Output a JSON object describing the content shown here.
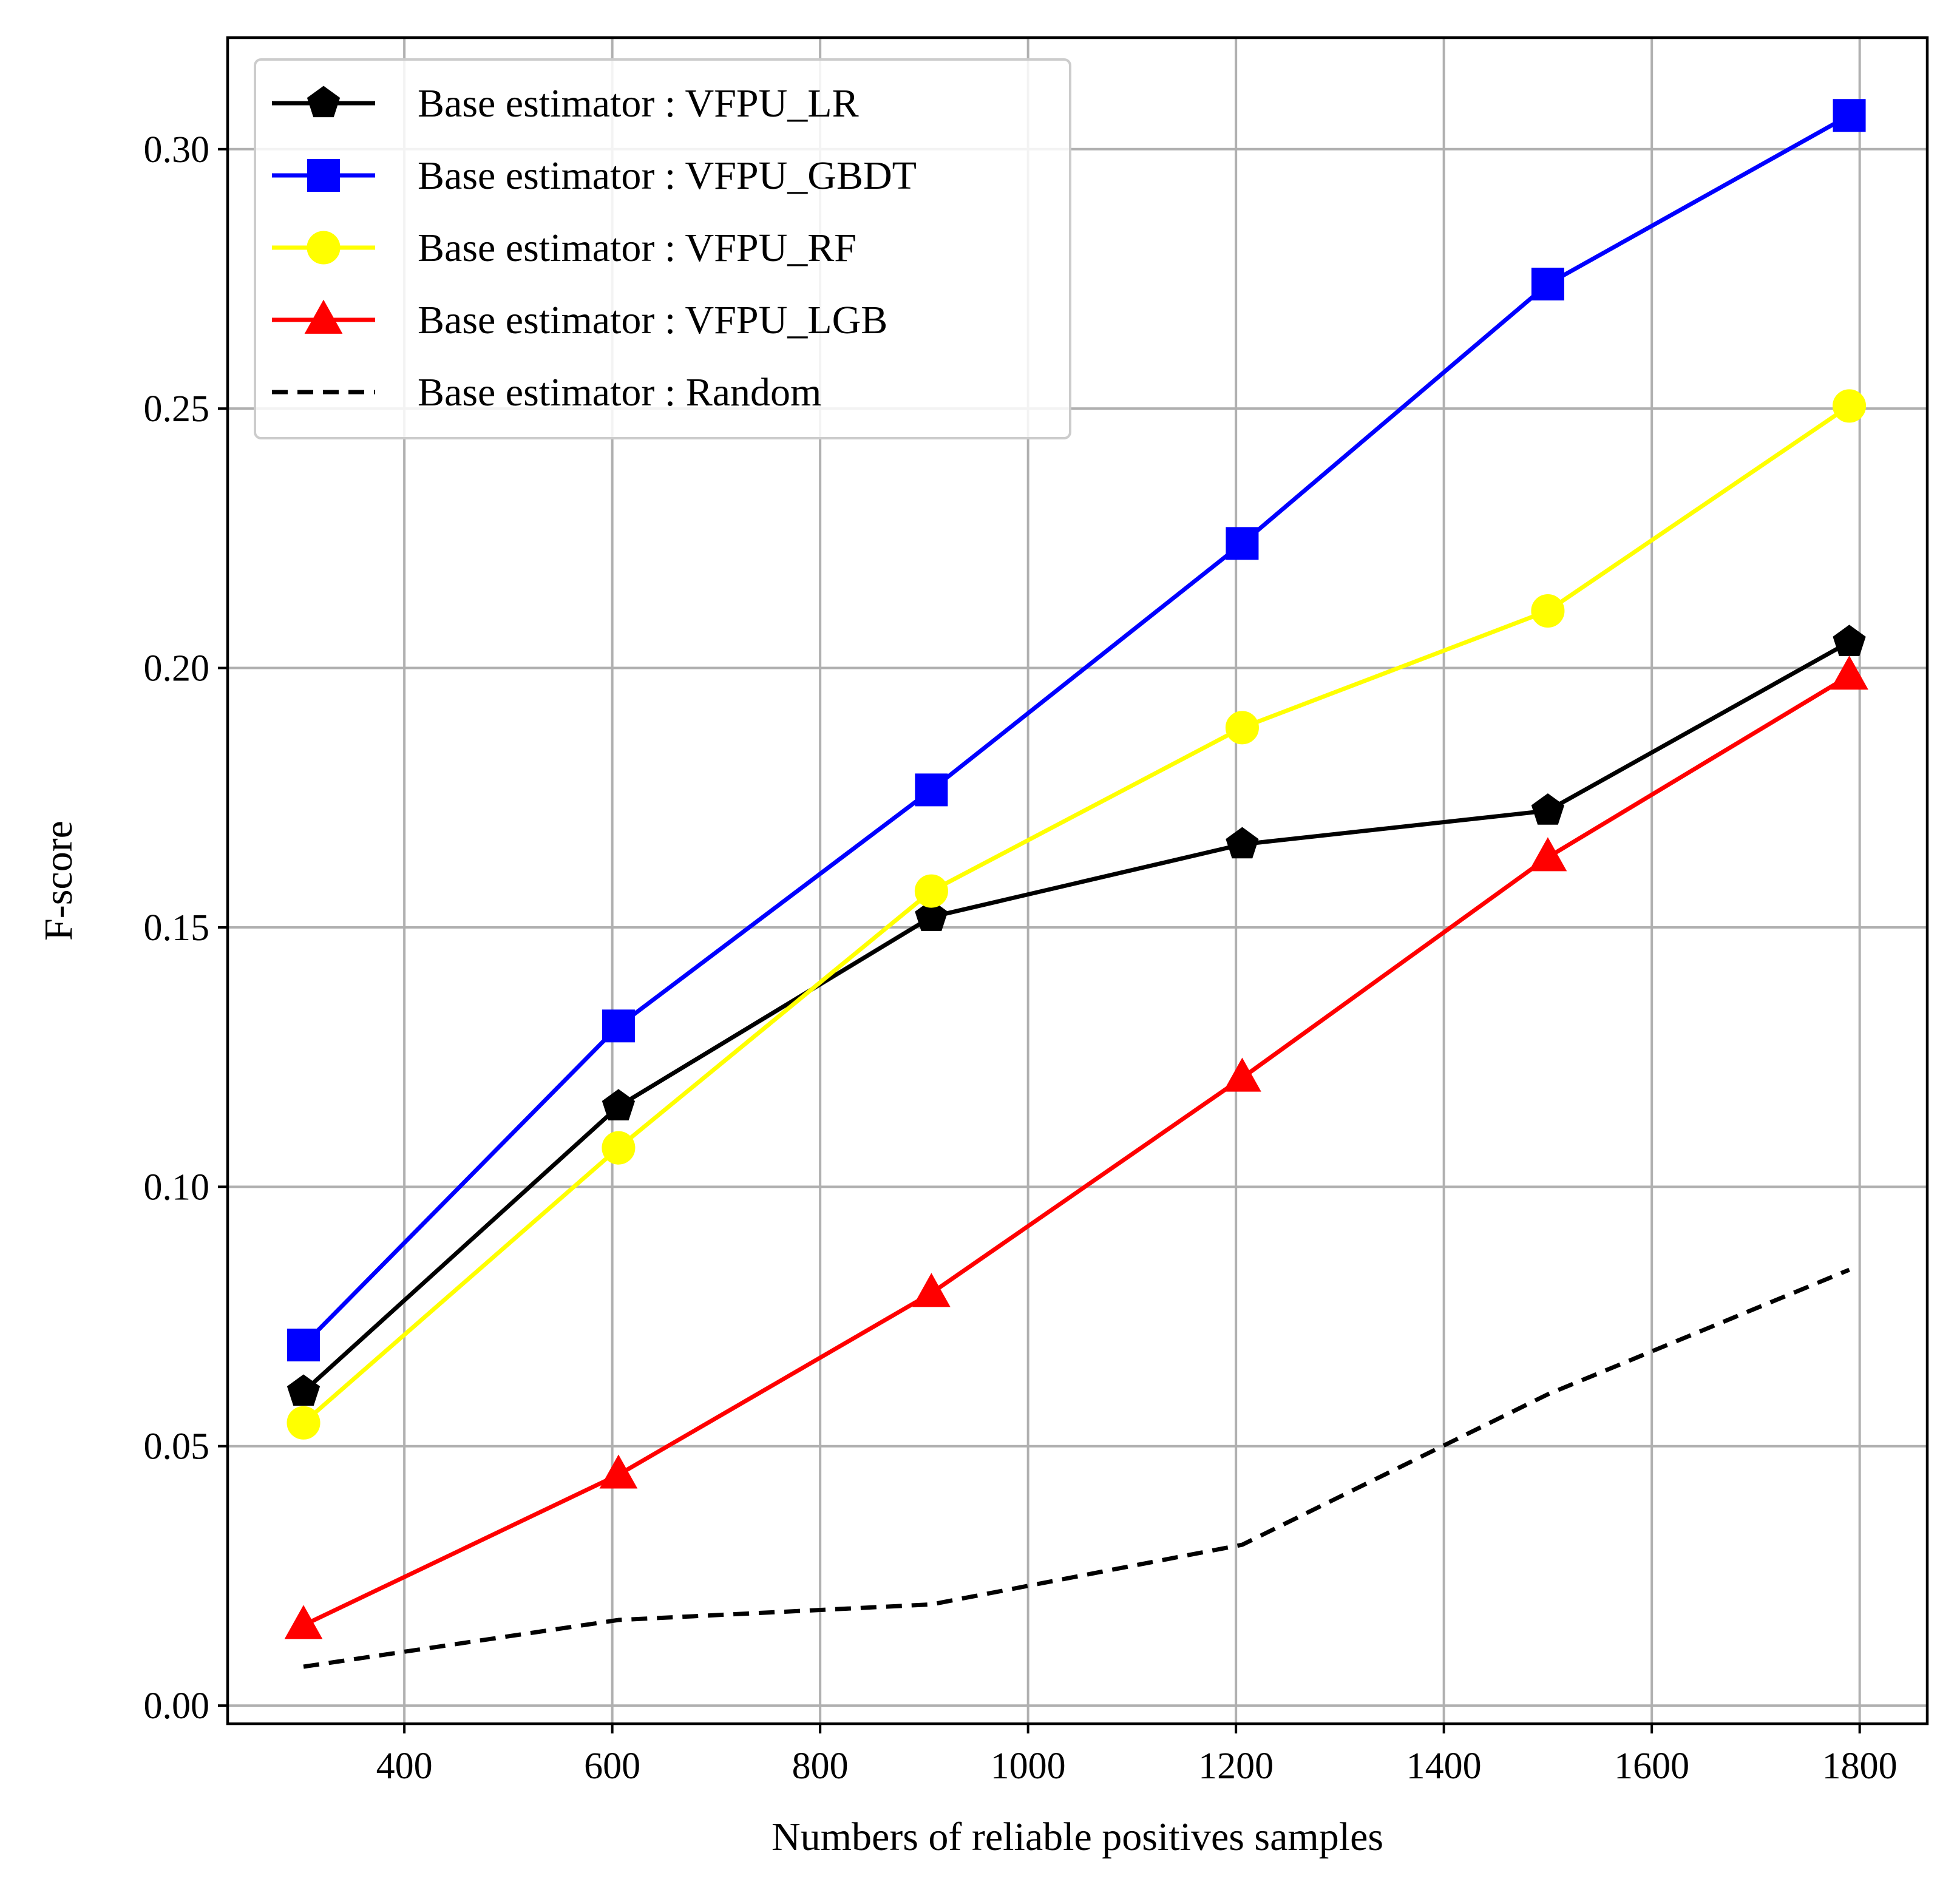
{
  "chart_data": {
    "type": "line",
    "xlabel": "Numbers of reliable positives samples",
    "ylabel": "F-score",
    "xlim": [
      230,
      1865
    ],
    "ylim": [
      -0.0035,
      0.3215
    ],
    "xticks": [
      400,
      600,
      800,
      1000,
      1200,
      1400,
      1600,
      1800
    ],
    "xtick_labels": [
      "400",
      "600",
      "800",
      "1000",
      "1200",
      "1400",
      "1600",
      "1800"
    ],
    "yticks": [
      0.0,
      0.05,
      0.1,
      0.15,
      0.2,
      0.25,
      0.3
    ],
    "ytick_labels": [
      "0.00",
      "0.05",
      "0.10",
      "0.15",
      "0.20",
      "0.25",
      "0.30"
    ],
    "grid": true,
    "legend_position": "top-left",
    "series": [
      {
        "name": "Base estimator : VFPU_LR",
        "color": "#000000",
        "marker": "pentagon",
        "linestyle": "solid",
        "x": [
          303,
          606,
          907,
          1206,
          1500,
          1790
        ],
        "y": [
          0.0605,
          0.1155,
          0.152,
          0.166,
          0.1725,
          0.205
        ]
      },
      {
        "name": "Base estimator : VFPU_GBDT",
        "color": "#0000ff",
        "marker": "square",
        "linestyle": "solid",
        "x": [
          303,
          606,
          907,
          1206,
          1500,
          1790
        ],
        "y": [
          0.0695,
          0.131,
          0.1765,
          0.224,
          0.274,
          0.3065
        ]
      },
      {
        "name": "Base estimator : VFPU_RF",
        "color": "#ffff00",
        "marker": "circle",
        "linestyle": "solid",
        "x": [
          303,
          606,
          907,
          1206,
          1500,
          1790
        ],
        "y": [
          0.0545,
          0.1075,
          0.157,
          0.1885,
          0.211,
          0.2505
        ]
      },
      {
        "name": "Base estimator : VFPU_LGB",
        "color": "#ff0000",
        "marker": "triangle",
        "linestyle": "solid",
        "x": [
          303,
          606,
          907,
          1206,
          1500,
          1790
        ],
        "y": [
          0.0155,
          0.0445,
          0.0795,
          0.121,
          0.1635,
          0.1985
        ]
      },
      {
        "name": "Base estimator : Random",
        "color": "#000000",
        "marker": "none",
        "linestyle": "dashed",
        "x": [
          303,
          606,
          907,
          1206,
          1500,
          1790
        ],
        "y": [
          0.0075,
          0.0165,
          0.0195,
          0.031,
          0.06,
          0.084
        ]
      }
    ]
  }
}
